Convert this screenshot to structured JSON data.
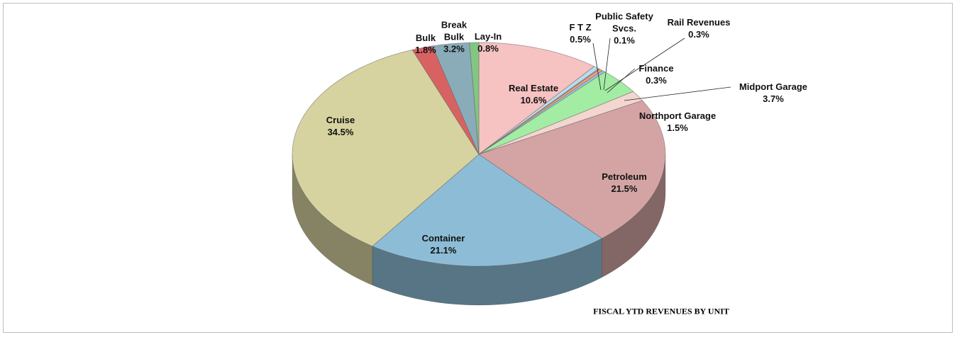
{
  "chart_data": {
    "type": "pie3d",
    "title": "FISCAL YTD REVENUES BY UNIT",
    "categories": [
      "Real Estate",
      "F T Z",
      "Public Safety Svcs.",
      "Rail Revenues",
      "Finance",
      "Midport Garage",
      "Northport Garage",
      "Petroleum",
      "Container",
      "Cruise",
      "Bulk",
      "Break Bulk",
      "Lay-In"
    ],
    "values": [
      10.6,
      0.5,
      0.1,
      0.3,
      0.3,
      3.7,
      1.5,
      21.5,
      21.1,
      34.5,
      1.8,
      3.2,
      0.8
    ],
    "value_labels": [
      "10.6%",
      "0.5%",
      "0.1%",
      "0.3%",
      "0.3%",
      "3.7%",
      "1.5%",
      "21.5%",
      "21.1%",
      "34.5%",
      "1.8%",
      "3.2%",
      "0.8%"
    ],
    "colors": [
      "#f6c2c2",
      "#b9dced",
      "#b9a3d6",
      "#f2a66a",
      "#9cc0e6",
      "#a3eca3",
      "#f4d6d0",
      "#d4a4a4",
      "#8dbdd6",
      "#d6d3a0",
      "#d86262",
      "#8aabb8",
      "#82c682"
    ]
  }
}
